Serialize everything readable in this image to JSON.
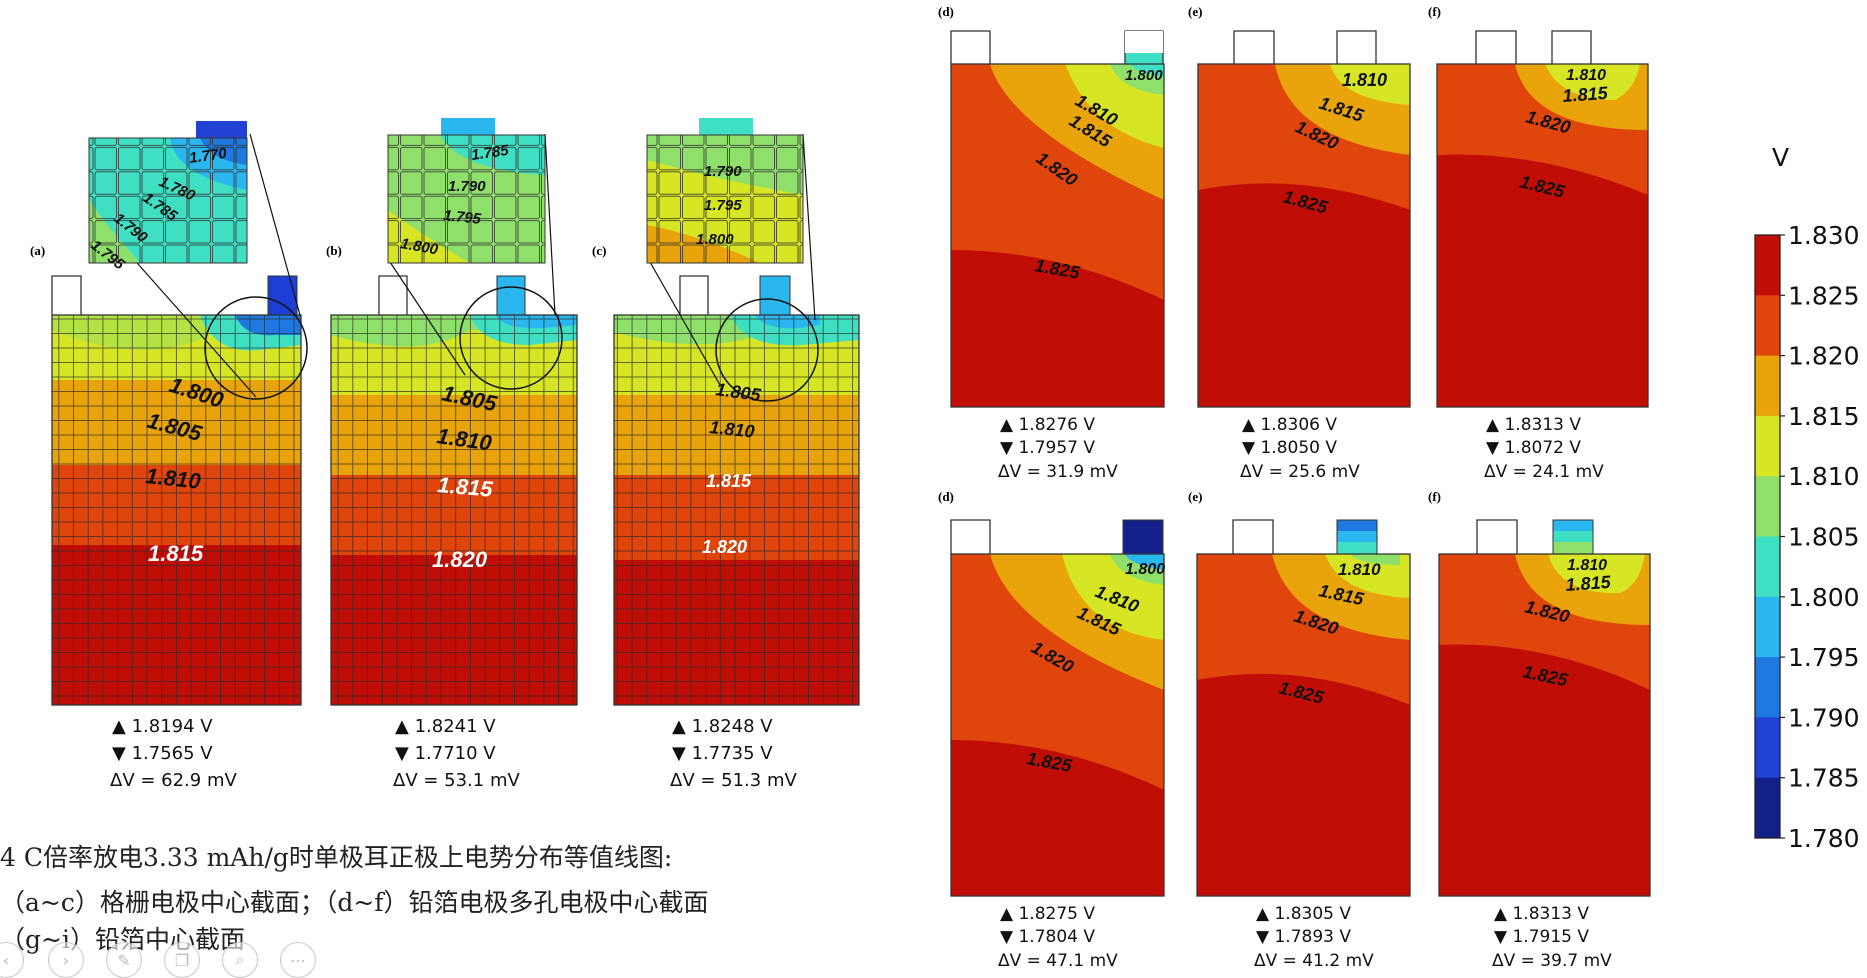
{
  "caption": {
    "line1": "4 C倍率放电3.33 mAh/g时单极耳正极上电势分布等值线图:",
    "line2": "（a~c）格栅电极中心截面；（d~f）铅箔电极多孔电极中心截面",
    "line3": "（g~i）铅箔中心截面"
  },
  "colorbar": {
    "unit": "V",
    "ticks": [
      "1.830",
      "1.825",
      "1.820",
      "1.815",
      "1.810",
      "1.805",
      "1.800",
      "1.795",
      "1.790",
      "1.785",
      "1.780"
    ],
    "colors": [
      "#c00d05",
      "#e0450c",
      "#e8a40a",
      "#d6e624",
      "#8fe06a",
      "#3fdfc4",
      "#2ab6ee",
      "#1f78e0",
      "#2140d4",
      "#14208a"
    ]
  },
  "grid_panels": [
    {
      "letter": "(a)",
      "max": "▲ 1.8194 V",
      "min": "▼ 1.7565 V",
      "delta": "ΔV = 62.9 mV",
      "labels": [
        "1.800",
        "1.805",
        "1.810",
        "1.815"
      ],
      "inset_labels": [
        "1.770",
        "1.780",
        "1.785",
        "1.790",
        "1.795"
      ]
    },
    {
      "letter": "(b)",
      "max": "▲ 1.8241 V",
      "min": "▼ 1.7710 V",
      "delta": "ΔV = 53.1 mV",
      "labels": [
        "1.805",
        "1.810",
        "1.815",
        "1.820"
      ],
      "inset_labels": [
        "1.785",
        "1.790",
        "1.795",
        "1.800"
      ]
    },
    {
      "letter": "(c)",
      "max": "▲ 1.8248 V",
      "min": "▼ 1.7735 V",
      "delta": "ΔV = 51.3 mV",
      "labels": [
        "1.805",
        "1.810",
        "1.815",
        "1.820"
      ],
      "inset_labels": [
        "1.790",
        "1.795",
        "1.800"
      ]
    }
  ],
  "foil_panels_top": [
    {
      "letter": "(d)",
      "max": "▲ 1.8276 V",
      "min": "▼ 1.7957 V",
      "delta": "ΔV = 31.9 mV",
      "labels": [
        "1.800",
        "1.810",
        "1.815",
        "1.820",
        "1.825"
      ]
    },
    {
      "letter": "(e)",
      "max": "▲ 1.8306 V",
      "min": "▼ 1.8050 V",
      "delta": "ΔV = 25.6 mV",
      "labels": [
        "1.810",
        "1.815",
        "1.820",
        "1.825"
      ]
    },
    {
      "letter": "(f)",
      "max": "▲ 1.8313 V",
      "min": "▼ 1.8072 V",
      "delta": "ΔV = 24.1 mV",
      "labels": [
        "1.810",
        "1.815",
        "1.820",
        "1.825"
      ]
    }
  ],
  "foil_panels_bottom": [
    {
      "letter": "(d)",
      "max": "▲ 1.8275 V",
      "min": "▼ 1.7804 V",
      "delta": "ΔV = 47.1 mV",
      "labels": [
        "1.800",
        "1.810",
        "1.815",
        "1.820",
        "1.825"
      ]
    },
    {
      "letter": "(e)",
      "max": "▲ 1.8305 V",
      "min": "▼ 1.7893 V",
      "delta": "ΔV = 41.2 mV",
      "labels": [
        "1.810",
        "1.815",
        "1.820",
        "1.825"
      ]
    },
    {
      "letter": "(f)",
      "max": "▲ 1.8313 V",
      "min": "▼ 1.7915 V",
      "delta": "ΔV = 39.7 mV",
      "labels": [
        "1.810",
        "1.815",
        "1.820",
        "1.825"
      ]
    }
  ],
  "viewer_controls": [
    "prev-icon",
    "next-icon",
    "pen-icon",
    "copy-icon",
    "zoom-icon",
    "more-icon"
  ]
}
